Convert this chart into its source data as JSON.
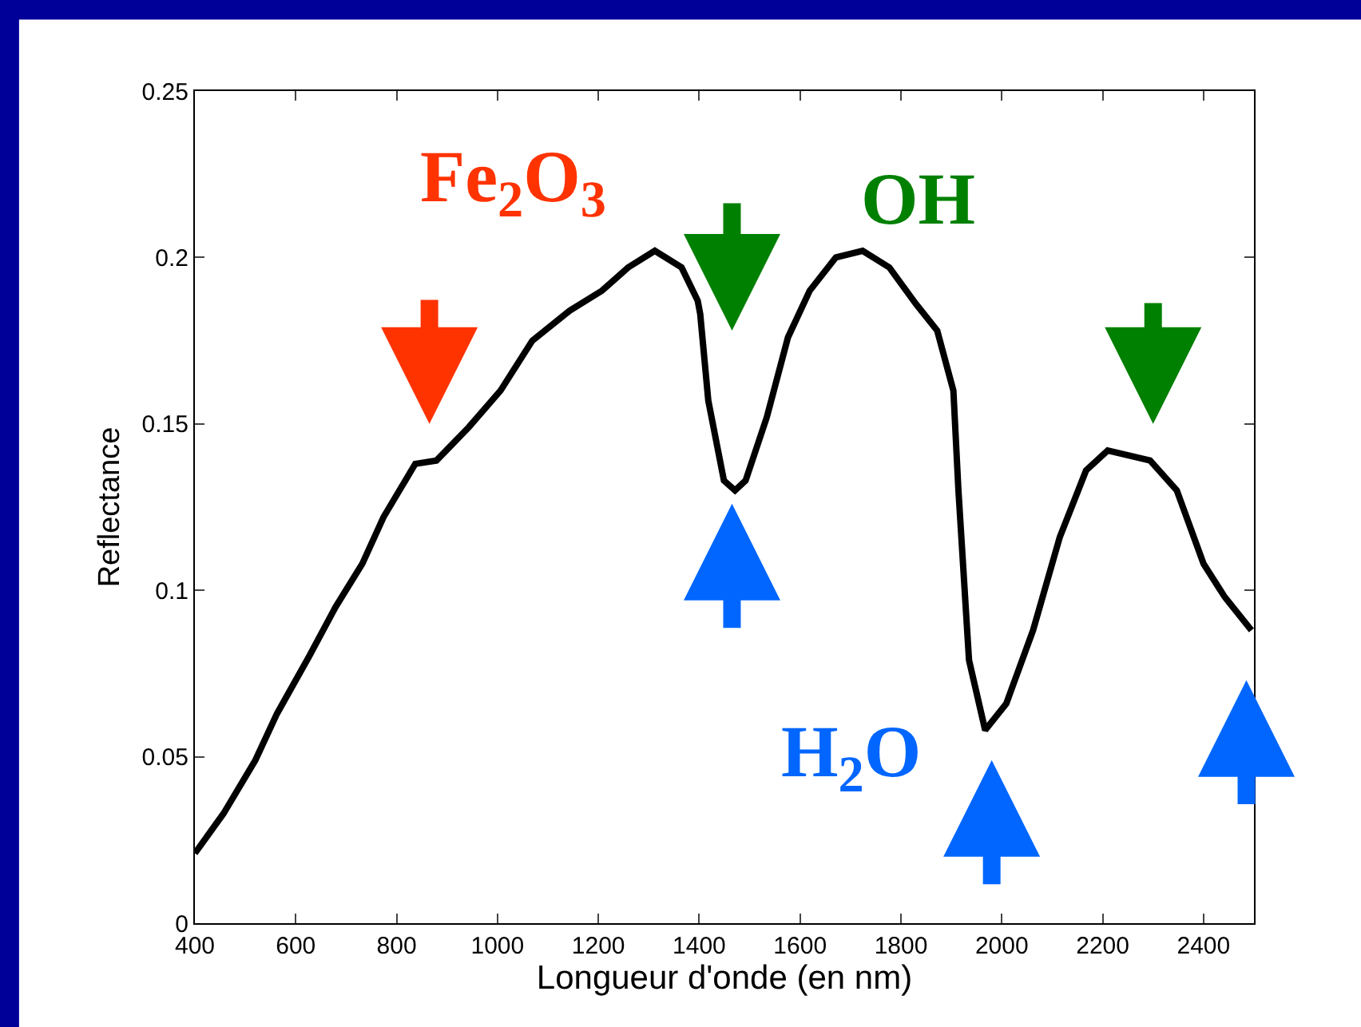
{
  "chart_data": {
    "type": "line",
    "xlabel": "Longueur d'onde (en nm)",
    "ylabel": "Reflectance",
    "x": [
      400,
      457,
      520,
      563,
      626,
      679,
      732,
      774,
      837,
      879,
      943,
      1006,
      1069,
      1143,
      1207,
      1259,
      1312,
      1365,
      1397,
      1402,
      1418,
      1449,
      1471,
      1492,
      1534,
      1576,
      1619,
      1671,
      1724,
      1777,
      1830,
      1872,
      1904,
      1914,
      1935,
      1967,
      2009,
      2062,
      2115,
      2167,
      2210,
      2294,
      2347,
      2400,
      2442,
      2495
    ],
    "series": [
      {
        "color": "#000000",
        "values": [
          0.021,
          0.033,
          0.049,
          0.063,
          0.08,
          0.095,
          0.108,
          0.122,
          0.138,
          0.139,
          0.149,
          0.16,
          0.175,
          0.184,
          0.19,
          0.197,
          0.202,
          0.197,
          0.187,
          0.183,
          0.157,
          0.133,
          0.13,
          0.133,
          0.152,
          0.176,
          0.19,
          0.2,
          0.202,
          0.197,
          0.186,
          0.178,
          0.16,
          0.13,
          0.079,
          0.058,
          0.066,
          0.088,
          0.116,
          0.136,
          0.142,
          0.139,
          0.13,
          0.108,
          0.098,
          0.088
        ]
      }
    ],
    "xlim": [
      400,
      2500
    ],
    "ylim": [
      0,
      0.25
    ],
    "xticks": [
      400,
      600,
      800,
      1000,
      1200,
      1400,
      1600,
      1800,
      2000,
      2200,
      2400
    ],
    "yticks": [
      0,
      0.05,
      0.1,
      0.15,
      0.2,
      0.25
    ],
    "annotations": [
      "Fe$_{2}$O$_{3}$",
      "OH",
      "H$_{2}$O"
    ],
    "marker": "none",
    "line_style": "solid"
  }
}
